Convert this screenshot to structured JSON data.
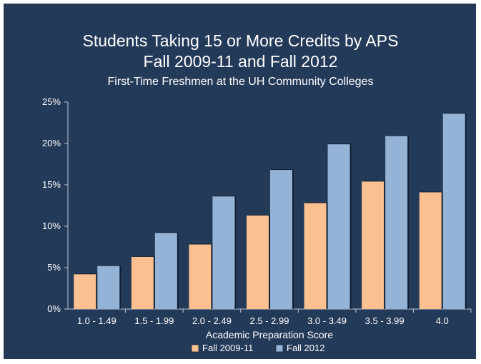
{
  "chart_data": {
    "type": "bar",
    "title_lines": [
      "Students Taking 15 or More Credits by APS",
      "Fall 2009-11 and Fall 2012"
    ],
    "subtitle": "First-Time Freshmen at the UH Community Colleges",
    "xlabel": "Academic Preparation Score",
    "ylabel": "",
    "categories": [
      "1.0 - 1.49",
      "1.5 - 1.99",
      "2.0 - 2.49",
      "2.5 - 2.99",
      "3.0 - 3.49",
      "3.5 - 3.99",
      "4.0"
    ],
    "series": [
      {
        "name": "Fall 2009-11",
        "color": "#fac090",
        "values": [
          4.2,
          6.3,
          7.8,
          11.3,
          12.8,
          15.4,
          14.1
        ]
      },
      {
        "name": "Fall 2012",
        "color": "#95b3d7",
        "values": [
          5.2,
          9.2,
          13.6,
          16.8,
          19.9,
          20.9,
          23.6
        ]
      }
    ],
    "ylim": [
      0,
      25
    ],
    "yticks": [
      0,
      5,
      10,
      15,
      20,
      25
    ],
    "ytick_labels": [
      "0%",
      "5%",
      "10%",
      "15%",
      "20%",
      "25%"
    ],
    "legend_position": "bottom",
    "grid": false,
    "background_color": "#243a59"
  }
}
